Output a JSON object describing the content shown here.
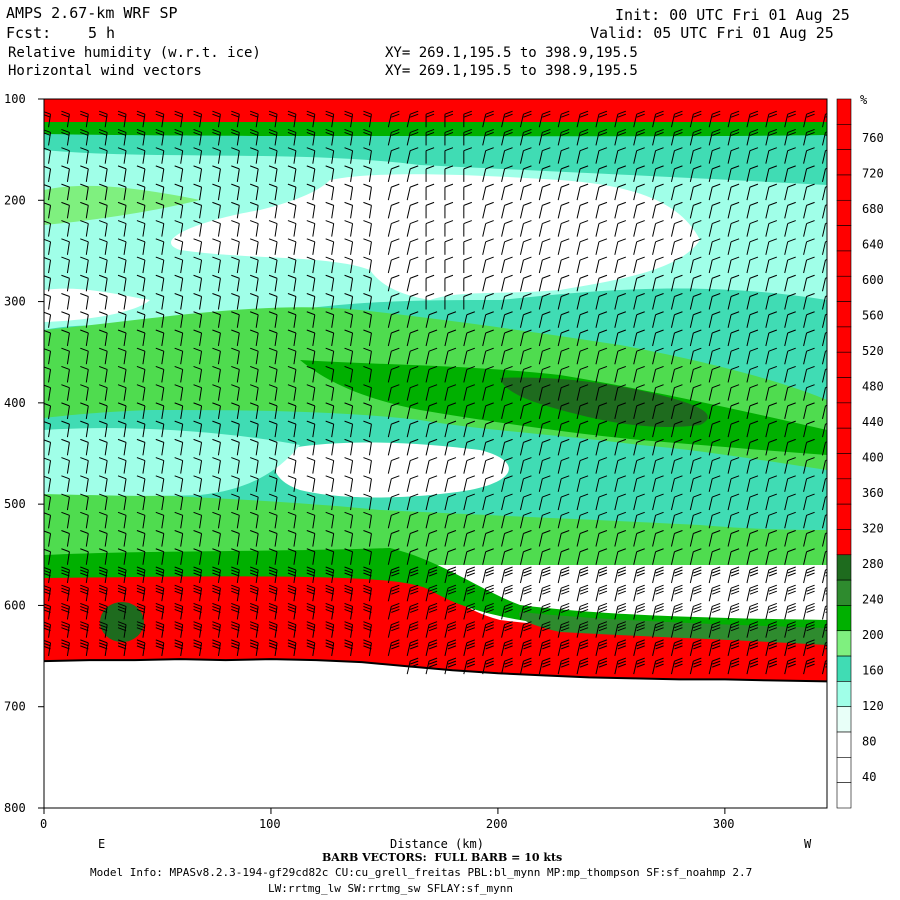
{
  "header": {
    "model_title": "AMPS 2.67-km WRF SP",
    "fcst_label": "Fcst:",
    "fcst_value": "5 h",
    "field1": "Relative humidity (w.r.t. ice)",
    "field2": "Horizontal wind vectors",
    "init": "Init: 00 UTC Fri 01 Aug 25",
    "valid": "Valid: 05 UTC Fri 01 Aug 25",
    "xy1": "XY= 269.1,195.5 to 398.9,195.5",
    "xy2": "XY= 269.1,195.5 to 398.9,195.5"
  },
  "footer": {
    "barb_note": "BARB VECTORS:  FULL BARB = 10 kts",
    "model_info_1": "Model Info: MPASv8.2.3-194-gf29cd82c CU:cu_grell_freitas PBL:bl_mynn MP:mp_thompson SF:sf_noahmp 2.7",
    "model_info_2": "LW:rrtmg_lw SW:rrtmg_sw SFLAY:sf_mynn"
  },
  "colors": {
    "red": "#ff0000",
    "darkgreen": "#1e6b1e",
    "green": "#00b000",
    "lightgreen": "#4fdc4f",
    "palegreen": "#7ff07f",
    "teal": "#40dcb4",
    "mint": "#a0ffe8",
    "white": "#ffffff"
  },
  "chart_data": {
    "type": "heatmap",
    "xlabel": "Distance (km)",
    "ylabel": "",
    "x_range": [
      0,
      345
    ],
    "y_range": [
      100,
      800
    ],
    "x_ticks": [
      0,
      100,
      200,
      300
    ],
    "y_ticks": [
      100,
      200,
      300,
      400,
      500,
      600,
      700,
      800
    ],
    "left_end_label": "E",
    "right_end_label": "W",
    "colorbar": {
      "unit": "%",
      "labels": [
        760,
        720,
        680,
        640,
        600,
        560,
        520,
        480,
        440,
        400,
        360,
        320,
        280,
        240,
        200,
        160,
        120,
        80,
        40
      ],
      "bottom_colors": [
        "#ffffff",
        "#ffffff",
        "#ffffff",
        "#e8fff8",
        "#a0ffe8",
        "#40dcb4",
        "#7ff07f",
        "#00b000",
        "#2e8b2e",
        "#1e6b1e"
      ],
      "top_color": "#ff0000"
    },
    "terrain_pressure": [
      [
        0,
        655
      ],
      [
        20,
        654
      ],
      [
        40,
        654
      ],
      [
        60,
        653
      ],
      [
        80,
        654
      ],
      [
        100,
        653
      ],
      [
        120,
        654
      ],
      [
        140,
        656
      ],
      [
        160,
        660
      ],
      [
        180,
        664
      ],
      [
        200,
        667
      ],
      [
        220,
        669
      ],
      [
        240,
        671
      ],
      [
        260,
        672
      ],
      [
        280,
        673
      ],
      [
        300,
        673
      ],
      [
        320,
        674
      ],
      [
        345,
        675
      ]
    ],
    "humidity_bands": [
      {
        "from": 100,
        "to": 125,
        "class": "red",
        "note": "top layer"
      },
      {
        "from": 560,
        "to": 660,
        "class": "red",
        "note": "lower layer"
      }
    ]
  }
}
